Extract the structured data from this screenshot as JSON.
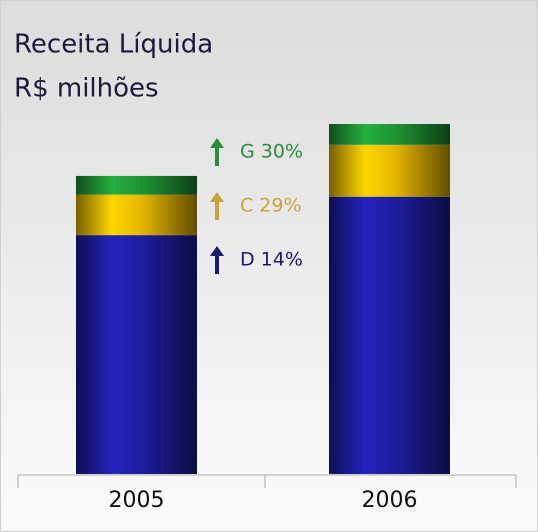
{
  "chart_data": {
    "type": "stacked-bar",
    "title": "Receita Líquida",
    "subtitle": "R$ milhões",
    "categories": [
      "2005",
      "2006"
    ],
    "series": [
      {
        "color": "#1c1c96",
        "values": [
          230,
          267
        ]
      },
      {
        "color": "#d8ac00",
        "values": [
          39,
          50
        ]
      },
      {
        "color": "#1e8c32",
        "values": [
          18,
          20
        ]
      }
    ],
    "annotations": [
      {
        "text": "D 14%",
        "color": "#1a1a6e"
      },
      {
        "text": "C 29%",
        "color": "#c9a23a"
      },
      {
        "text": "G 30%",
        "color": "#2a8c3c"
      }
    ]
  }
}
